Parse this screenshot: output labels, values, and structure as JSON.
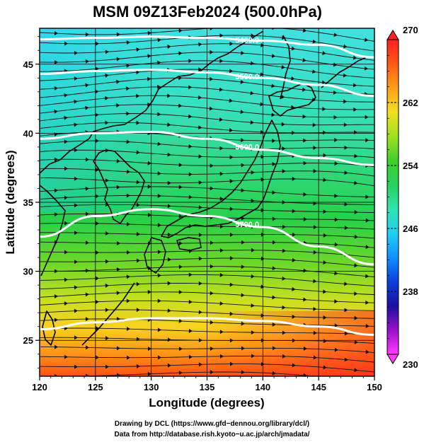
{
  "title": "MSM 09Z13Feb2024 (500.0hPa)",
  "x_axis": {
    "label": "Longitude (degrees)",
    "ticks": [
      120,
      125,
      130,
      135,
      140,
      145,
      150
    ],
    "range": [
      120,
      150
    ]
  },
  "y_axis": {
    "label": "Latitude  (degrees)",
    "ticks": [
      25,
      30,
      35,
      40,
      45
    ],
    "range": [
      22.4,
      47.6
    ]
  },
  "colorbar": {
    "ticks": [
      270,
      262,
      254,
      246,
      238,
      230
    ],
    "range": [
      230,
      270
    ],
    "colors": [
      "#ff3cff",
      "#9a10c8",
      "#1a10a0",
      "#0a40e0",
      "#1090ff",
      "#20d0f0",
      "#30e4b0",
      "#28d060",
      "#40d028",
      "#a0e020",
      "#f0e020",
      "#ffa018",
      "#ff5a14",
      "#ff2020"
    ]
  },
  "contours": [
    {
      "label": "5400.0",
      "lat_at_lon": [
        46.8,
        46.9,
        47.0,
        46.9,
        46.7,
        46.4,
        45.5
      ]
    },
    {
      "label": "5500.0",
      "lat_at_lon": [
        44.3,
        44.5,
        44.6,
        44.4,
        44.0,
        43.5,
        42.7
      ]
    },
    {
      "label": "5600.0",
      "lat_at_lon": [
        39.6,
        40.0,
        40.1,
        39.6,
        38.8,
        38.2,
        37.7
      ]
    },
    {
      "label": "5700.0",
      "lat_at_lon": [
        32.5,
        34.0,
        34.5,
        34.0,
        33.2,
        31.8,
        30.5
      ]
    },
    {
      "label": "",
      "lat_at_lon": [
        25.8,
        26.3,
        26.6,
        26.6,
        26.4,
        26.0,
        25.4
      ]
    }
  ],
  "footer": {
    "line1": "Drawing by DCL (https://www.gfd−dennou.org/library/dcl/)",
    "line2": "Data from http://database.rish.kyoto−u.ac.jp/arch/jmadata/"
  }
}
